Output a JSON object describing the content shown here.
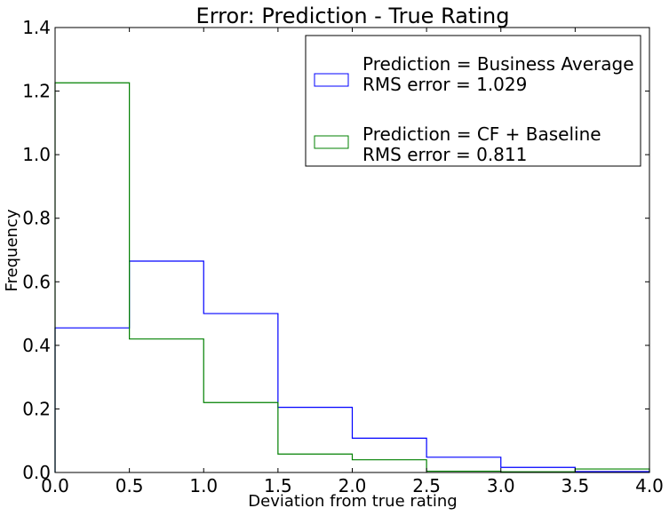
{
  "chart_data": {
    "type": "histogram",
    "title": "Error: Prediction - True Rating",
    "xlabel": "Deviation from true rating",
    "ylabel": "Frequency",
    "xlim": [
      0.0,
      4.0
    ],
    "ylim": [
      0.0,
      1.4
    ],
    "xticks": [
      0.0,
      0.5,
      1.0,
      1.5,
      2.0,
      2.5,
      3.0,
      3.5,
      4.0
    ],
    "xtick_labels": [
      "0.0",
      "0.5",
      "1.0",
      "1.5",
      "2.0",
      "2.5",
      "3.0",
      "3.5",
      "4.0"
    ],
    "yticks": [
      0.0,
      0.2,
      0.4,
      0.6,
      0.8,
      1.0,
      1.2,
      1.4
    ],
    "ytick_labels": [
      "0.0",
      "0.2",
      "0.4",
      "0.6",
      "0.8",
      "1.0",
      "1.2",
      "1.4"
    ],
    "bins": [
      0.0,
      0.5,
      1.0,
      1.5,
      2.0,
      2.5,
      3.0,
      3.5,
      4.0
    ],
    "series": [
      {
        "label": "Prediction = Business Average",
        "rms_label": "RMS error = 1.029",
        "color": "#0000ff",
        "values": [
          0.455,
          0.665,
          0.5,
          0.205,
          0.108,
          0.048,
          0.016,
          0.003
        ]
      },
      {
        "label": "Prediction = CF + Baseline",
        "rms_label": "RMS error = 0.811",
        "color": "#008000",
        "values": [
          1.226,
          0.42,
          0.22,
          0.058,
          0.04,
          0.004,
          0.002,
          0.011
        ]
      }
    ],
    "grid": false,
    "legend_position": "top-right"
  }
}
